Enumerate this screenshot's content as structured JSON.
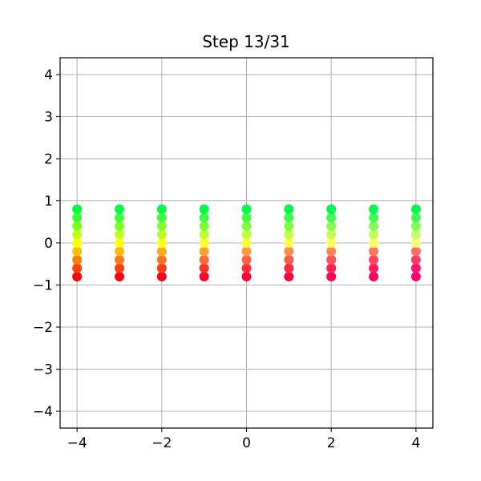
{
  "chart_data": {
    "type": "scatter",
    "title": "Step 13/31",
    "xlabel": "",
    "ylabel": "",
    "xlim": [
      -4.4,
      4.4
    ],
    "ylim": [
      -4.4,
      4.4
    ],
    "x_ticks": [
      -4,
      -2,
      0,
      2,
      4
    ],
    "y_ticks": [
      -4,
      -3,
      -2,
      -1,
      0,
      1,
      2,
      3,
      4
    ],
    "x_tick_labels": [
      "−4",
      "−2",
      "0",
      "2",
      "4"
    ],
    "y_tick_labels": [
      "−4",
      "−3",
      "−2",
      "−1",
      "0",
      "1",
      "2",
      "3",
      "4"
    ],
    "grid": true,
    "legend": "none",
    "x": [
      -4,
      -3,
      -2,
      -1,
      0,
      1,
      2,
      3,
      4
    ],
    "y": [
      -0.8,
      -0.6,
      -0.4,
      -0.2,
      0.0,
      0.2,
      0.4,
      0.6,
      0.8
    ],
    "color_mapping": {
      "y_low_color": "#ff0000",
      "y_mid_color": "#ffff00",
      "y_high_color": "#00ff40",
      "x_right_tint": "#ff0080"
    }
  },
  "colors": {
    "grid": "#b0b0b0",
    "axes": "#000000",
    "background": "#ffffff"
  }
}
